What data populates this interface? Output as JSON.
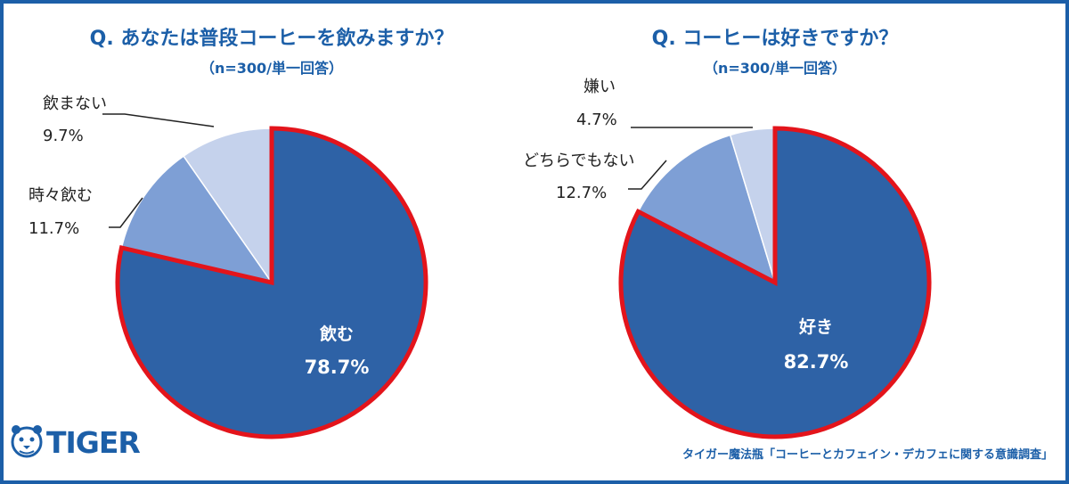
{
  "colors": {
    "accent": "#1c5fa8",
    "slice_main": "#2e62a6",
    "slice_mid": "#7e9fd5",
    "slice_light": "#c5d2ec",
    "highlight": "#e3141b"
  },
  "brand": {
    "logo_text": "TIGER",
    "logo_icon": "tiger-face-icon"
  },
  "source_note": "タイガー魔法瓶「コーヒーとカフェイン・デカフェに関する意識調査」",
  "chart_data": [
    {
      "type": "pie",
      "title": "Q. あなたは普段コーヒーを飲みますか？",
      "subtitle": "（n=300/単一回答）",
      "slices": [
        {
          "label": "飲む",
          "value": 78.7,
          "display": "78.7%",
          "color": "#2e62a6",
          "highlighted": true
        },
        {
          "label": "時々飲む",
          "value": 11.7,
          "display": "11.7%",
          "color": "#7e9fd5",
          "highlighted": false
        },
        {
          "label": "飲まない",
          "value": 9.7,
          "display": "9.7%",
          "color": "#c5d2ec",
          "highlighted": false
        }
      ]
    },
    {
      "type": "pie",
      "title": "Q. コーヒーは好きですか？",
      "subtitle": "（n=300/単一回答）",
      "slices": [
        {
          "label": "好き",
          "value": 82.7,
          "display": "82.7%",
          "color": "#2e62a6",
          "highlighted": true
        },
        {
          "label": "どちらでもない",
          "value": 12.7,
          "display": "12.7%",
          "color": "#7e9fd5",
          "highlighted": false
        },
        {
          "label": "嫌い",
          "value": 4.7,
          "display": "4.7%",
          "color": "#c5d2ec",
          "highlighted": false
        }
      ]
    }
  ]
}
